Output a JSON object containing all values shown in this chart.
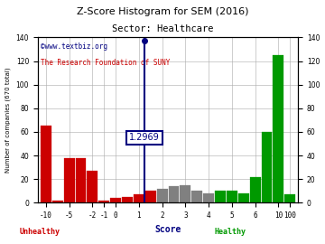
{
  "title": "Z-Score Histogram for SEM (2016)",
  "subtitle": "Sector: Healthcare",
  "xlabel": "Score",
  "ylabel": "Number of companies (670 total)",
  "watermark1": "©www.textbiz.org",
  "watermark2": "The Research Foundation of SUNY",
  "zscore_value": 1.2969,
  "zscore_label": "1.2969",
  "ylim": [
    0,
    140
  ],
  "yticks": [
    0,
    20,
    40,
    60,
    80,
    100,
    120,
    140
  ],
  "bars": [
    {
      "label": "-10",
      "height": 65,
      "color": "#cc0000"
    },
    {
      "label": "",
      "height": 2,
      "color": "#cc0000"
    },
    {
      "label": "-5",
      "height": 38,
      "color": "#cc0000"
    },
    {
      "label": "",
      "height": 38,
      "color": "#cc0000"
    },
    {
      "label": "-2",
      "height": 27,
      "color": "#cc0000"
    },
    {
      "label": "-1",
      "height": 2,
      "color": "#cc0000"
    },
    {
      "label": "0",
      "height": 4,
      "color": "#cc0000"
    },
    {
      "label": "",
      "height": 5,
      "color": "#cc0000"
    },
    {
      "label": "1",
      "height": 7,
      "color": "#cc0000"
    },
    {
      "label": "",
      "height": 10,
      "color": "#cc0000"
    },
    {
      "label": "2",
      "height": 12,
      "color": "#808080"
    },
    {
      "label": "",
      "height": 14,
      "color": "#808080"
    },
    {
      "label": "3",
      "height": 15,
      "color": "#808080"
    },
    {
      "label": "",
      "height": 10,
      "color": "#808080"
    },
    {
      "label": "4",
      "height": 8,
      "color": "#808080"
    },
    {
      "label": "",
      "height": 10,
      "color": "#009900"
    },
    {
      "label": "5",
      "height": 10,
      "color": "#009900"
    },
    {
      "label": "",
      "height": 8,
      "color": "#009900"
    },
    {
      "label": "6",
      "height": 22,
      "color": "#009900"
    },
    {
      "label": "",
      "height": 60,
      "color": "#009900"
    },
    {
      "label": "10",
      "height": 125,
      "color": "#009900"
    },
    {
      "label": "100",
      "height": 7,
      "color": "#009900"
    }
  ],
  "zscore_bar_index": 8.5,
  "xtick_indices": [
    0,
    2,
    4,
    5,
    6,
    8,
    10,
    12,
    14,
    16,
    18,
    20,
    21
  ],
  "xtick_labels": [
    "-10",
    "-5",
    "-2",
    "-1",
    "0",
    "1",
    "2",
    "3",
    "4",
    "5",
    "6",
    "10",
    "100"
  ],
  "unhealthy_label": "Unhealthy",
  "healthy_label": "Healthy",
  "background_color": "#ffffff",
  "grid_color": "#aaaaaa",
  "watermark1_color": "#000080",
  "watermark2_color": "#cc0000",
  "unhealthy_color": "#cc0000",
  "healthy_color": "#009900",
  "zscore_line_color": "#000080"
}
